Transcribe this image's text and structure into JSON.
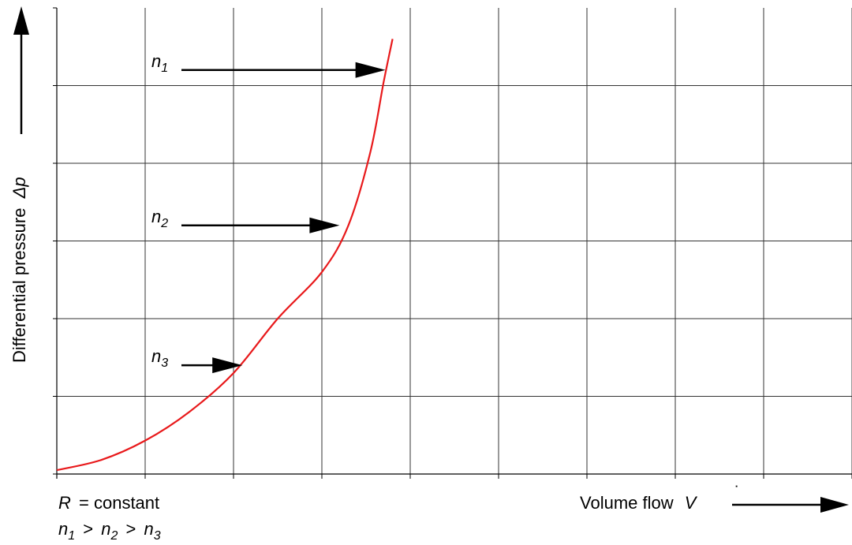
{
  "chart_data": {
    "type": "line",
    "title": "",
    "xlabel": "Volume flow",
    "xlabel_symbol": "V",
    "ylabel": "Differential pressure",
    "ylabel_symbol": "Δp",
    "grid": true,
    "xlim": [
      0,
      9
    ],
    "ylim": [
      0,
      6
    ],
    "x_divisions": 9,
    "y_divisions": 6,
    "series": [
      {
        "color": "#e8191b",
        "x": [
          0,
          0.5,
          1.0,
          1.5,
          2.0,
          2.5,
          3.0,
          3.3,
          3.55,
          3.7,
          3.8
        ],
        "y": [
          0.05,
          0.18,
          0.43,
          0.8,
          1.3,
          2.0,
          2.6,
          3.2,
          4.15,
          5.05,
          5.6
        ]
      }
    ],
    "annotations": [
      {
        "name": "n",
        "sub": "1",
        "x": 3.72,
        "y": 5.2
      },
      {
        "name": "n",
        "sub": "2",
        "x": 3.2,
        "y": 3.2
      },
      {
        "name": "n",
        "sub": "3",
        "x": 2.1,
        "y": 1.4
      }
    ],
    "notes": {
      "r_symbol": "R",
      "r_text": "= constant",
      "order": [
        {
          "name": "n",
          "sub": "1"
        },
        {
          "name": "n",
          "sub": "2"
        },
        {
          "name": "n",
          "sub": "3"
        }
      ],
      "op": ">"
    }
  }
}
